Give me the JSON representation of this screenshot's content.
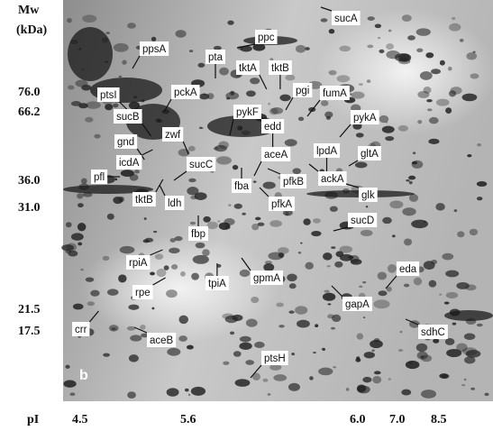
{
  "axes": {
    "mw_title": "Mw",
    "mw_unit": "(kDa)",
    "mw_labels": [
      "76.0",
      "66.2",
      "36.0",
      "31.0",
      "21.5",
      "17.5"
    ],
    "pi_title": "pI",
    "pi_labels": [
      "4.5",
      "5.6",
      "6.0",
      "7.0",
      "8.5"
    ]
  },
  "panel_label": "b",
  "proteins": [
    "sucA",
    "ppc",
    "ppsA",
    "pta",
    "tktA",
    "tktB",
    "pgi",
    "fumA",
    "ptsI",
    "pckA",
    "pykF",
    "edd",
    "pykA",
    "sucB",
    "zwf",
    "gnd",
    "aceA",
    "lpdA",
    "gltA",
    "icdA",
    "sucC",
    "fba",
    "pfkB",
    "ackA",
    "pfl",
    "tktB",
    "ldh",
    "pfkA",
    "glk",
    "sucD",
    "fbp",
    "rpiA",
    "eda",
    "gpmA",
    "tpiA",
    "rpe",
    "gapA",
    "crr",
    "aceB",
    "sdhC",
    "ptsH"
  ]
}
